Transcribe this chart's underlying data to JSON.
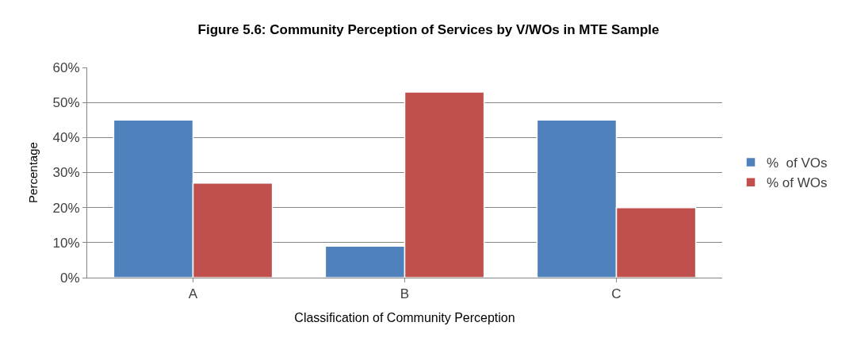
{
  "chart_data": {
    "type": "bar",
    "title": "Figure 5.6: Community Perception of Services by V/WOs in MTE Sample",
    "xlabel": "Classification of Community Perception",
    "ylabel": "Percentage",
    "categories": [
      "A",
      "B",
      "C"
    ],
    "series": [
      {
        "name": "%  of VOs",
        "color": "#4f81bd",
        "values": [
          45,
          9,
          45
        ]
      },
      {
        "name": "% of WOs",
        "color": "#c0504d",
        "values": [
          27,
          53,
          20
        ]
      }
    ],
    "ylim": [
      0,
      60
    ],
    "yticks": [
      {
        "value": 0,
        "label": "0%"
      },
      {
        "value": 10,
        "label": "10%"
      },
      {
        "value": 20,
        "label": "20%"
      },
      {
        "value": 30,
        "label": "30%"
      },
      {
        "value": 40,
        "label": "40%"
      },
      {
        "value": 50,
        "label": "50%"
      },
      {
        "value": 60,
        "label": "60%"
      }
    ],
    "grid": "y",
    "legend": "right"
  }
}
